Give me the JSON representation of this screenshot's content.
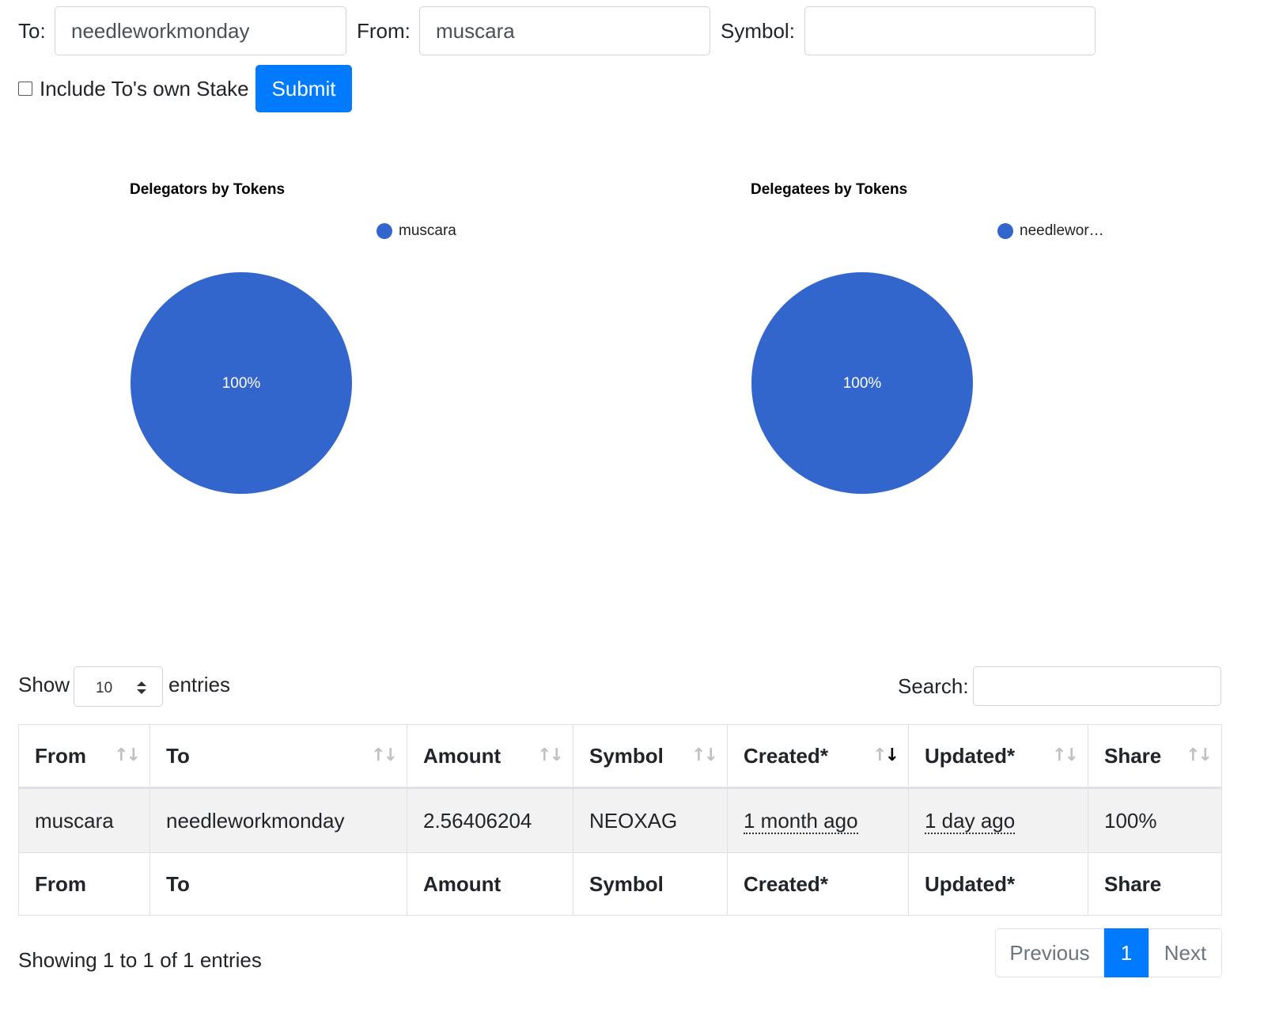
{
  "form": {
    "to_label": "To:",
    "to_value": "needleworkmonday",
    "from_label": "From:",
    "from_value": "muscara",
    "symbol_label": "Symbol:",
    "symbol_value": "",
    "include_stake_label": "Include To's own Stake",
    "include_stake_checked": false,
    "submit_label": "Submit"
  },
  "chart_data": [
    {
      "type": "pie",
      "title": "Delegators by Tokens",
      "labels": [
        "muscara"
      ],
      "values": [
        100
      ],
      "data_labels": [
        "100%"
      ],
      "legend_labels": [
        "muscara"
      ],
      "colors": [
        "#3366cc"
      ],
      "legend_position": "top-right"
    },
    {
      "type": "pie",
      "title": "Delegatees by Tokens",
      "labels": [
        "needleworkmonday"
      ],
      "values": [
        100
      ],
      "data_labels": [
        "100%"
      ],
      "legend_labels": [
        "needlewor…"
      ],
      "colors": [
        "#3366cc"
      ],
      "legend_position": "top-right"
    }
  ],
  "table_controls": {
    "show_label": "Show",
    "entries_label": "entries",
    "page_length": "10",
    "search_label": "Search:",
    "search_value": ""
  },
  "table": {
    "columns": [
      "From",
      "To",
      "Amount",
      "Symbol",
      "Created*",
      "Updated*",
      "Share"
    ],
    "sorted_column": "Created*",
    "sort_direction": "descending",
    "rows": [
      [
        "muscara",
        "needleworkmonday",
        "2.56406204",
        "NEOXAG",
        "1 month ago",
        "1 day ago",
        "100%"
      ]
    ]
  },
  "footer": {
    "info": "Showing 1 to 1 of 1 entries",
    "prev_label": "Previous",
    "current_page": "1",
    "next_label": "Next"
  },
  "colors": {
    "accent": "#007bff",
    "pie": "#3366cc",
    "row_stripe": "#f2f2f2"
  }
}
